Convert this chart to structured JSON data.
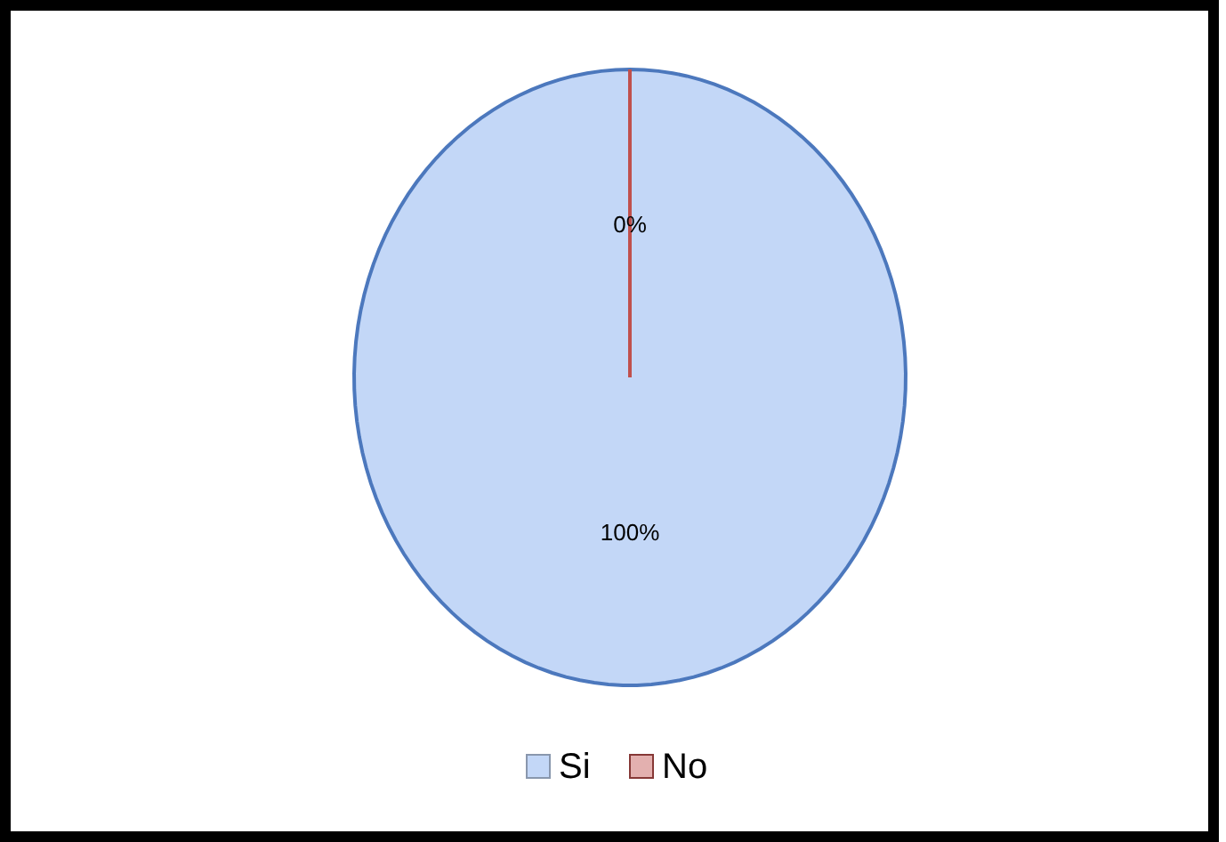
{
  "chart_data": {
    "type": "pie",
    "categories": [
      "Si",
      "No"
    ],
    "values": [
      100,
      0
    ],
    "colors": [
      "#c3d7f7",
      "#c0504d"
    ],
    "value_labels": [
      "100%",
      "0%"
    ],
    "legend": "bottom"
  }
}
